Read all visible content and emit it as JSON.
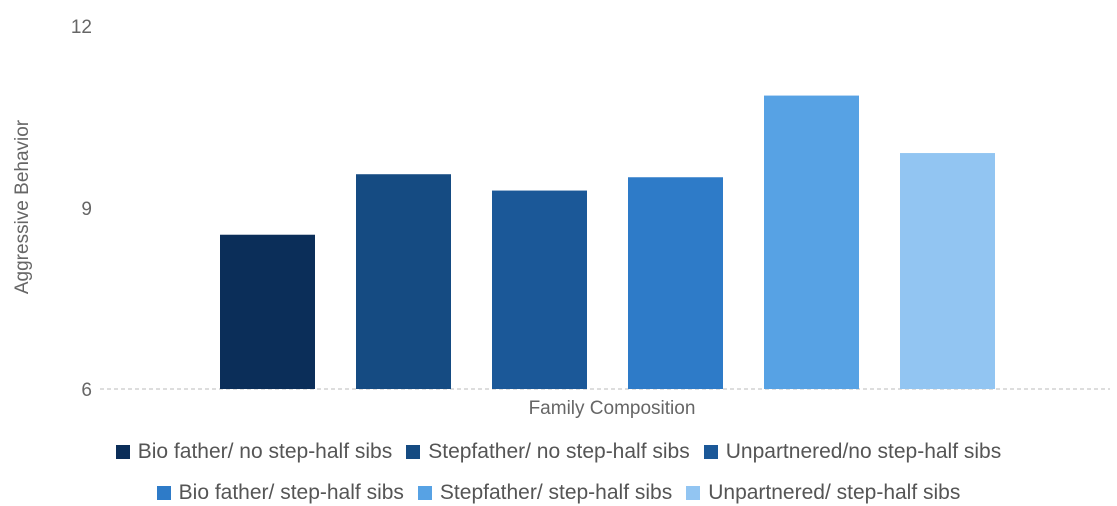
{
  "chart_data": {
    "type": "bar",
    "xlabel": "Family Composition",
    "ylabel": "Aggressive Behavior",
    "ylim": [
      6,
      12
    ],
    "yticks": [
      6,
      9,
      12
    ],
    "grid": false,
    "legend_position": "bottom",
    "series": [
      {
        "name": "Bio father/ no step-half sibs",
        "value": 8.55,
        "color": "#0b2e59"
      },
      {
        "name": "Stepfather/ no step-half sibs",
        "value": 9.55,
        "color": "#154b82"
      },
      {
        "name": "Unpartnered/no step-half sibs",
        "value": 9.28,
        "color": "#1b5898"
      },
      {
        "name": "Bio father/ step-half sibs",
        "value": 9.5,
        "color": "#2e7bc8"
      },
      {
        "name": "Stepfather/ step-half sibs",
        "value": 10.85,
        "color": "#57a2e4"
      },
      {
        "name": "Unpartnered/ step-half sibs",
        "value": 9.9,
        "color": "#92c5f2"
      }
    ]
  }
}
